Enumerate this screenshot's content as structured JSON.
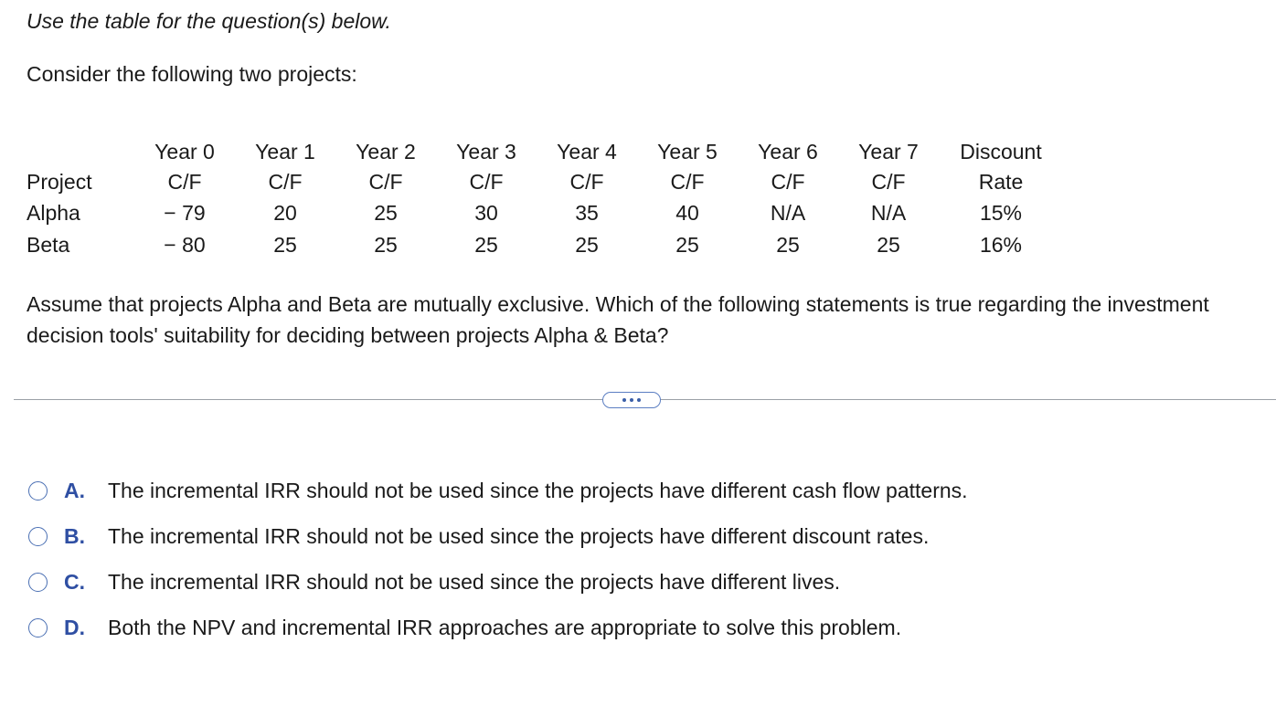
{
  "intro": {
    "instruction": "Use the table for the question(s) below.",
    "lead": "Consider the following two projects:"
  },
  "table": {
    "project_header": "Project",
    "year_headers": [
      {
        "line1": "Year 0",
        "line2": "C/F"
      },
      {
        "line1": "Year 1",
        "line2": "C/F"
      },
      {
        "line1": "Year 2",
        "line2": "C/F"
      },
      {
        "line1": "Year 3",
        "line2": "C/F"
      },
      {
        "line1": "Year 4",
        "line2": "C/F"
      },
      {
        "line1": "Year 5",
        "line2": "C/F"
      },
      {
        "line1": "Year 6",
        "line2": "C/F"
      },
      {
        "line1": "Year 7",
        "line2": "C/F"
      }
    ],
    "rate_header": {
      "line1": "Discount",
      "line2": "Rate"
    },
    "rows": [
      {
        "name": "Alpha",
        "cf": [
          "− 79",
          "20",
          "25",
          "30",
          "35",
          "40",
          "N/A",
          "N/A"
        ],
        "rate": "15%"
      },
      {
        "name": "Beta",
        "cf": [
          "− 80",
          "25",
          "25",
          "25",
          "25",
          "25",
          "25",
          "25"
        ],
        "rate": "16%"
      }
    ]
  },
  "question": "Assume that projects Alpha and Beta are mutually exclusive.  Which of the following statements is true regarding the investment decision tools' suitability for deciding between projects Alpha & Beta?",
  "options": [
    {
      "letter": "A.",
      "text": "The incremental IRR should not be used since the projects have different cash flow patterns."
    },
    {
      "letter": "B.",
      "text": "The incremental IRR should not be used since the projects have different discount rates."
    },
    {
      "letter": "C.",
      "text": "The incremental IRR should not be used since the projects have different lives."
    },
    {
      "letter": "D.",
      "text": "Both the NPV and incremental IRR approaches are appropriate to solve this problem."
    }
  ],
  "colors": {
    "accent": "#2f4fa3",
    "radio_border": "#4a6fb3",
    "divider": "#9aa0a6"
  },
  "icons": {
    "expand": "more-dots-icon",
    "radio": "radio-unselected-icon"
  }
}
